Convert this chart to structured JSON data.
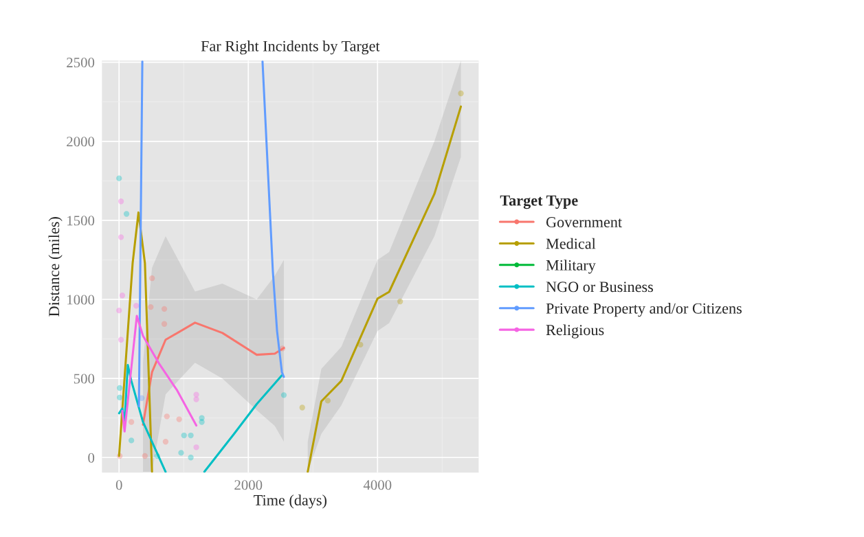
{
  "chart_data": {
    "type": "line",
    "title": "Far Right Incidents by Target",
    "xlabel": "Time (days)",
    "ylabel": "Distance (miles)",
    "legend_title": "Target Type",
    "legend": "right",
    "grid": true,
    "xlim": [
      -265,
      5565
    ],
    "xticks": [
      0,
      2000,
      4000
    ],
    "ylim": [
      -95,
      2510
    ],
    "yticks": [
      0,
      500,
      1000,
      1500,
      2000,
      2500
    ],
    "series": [
      {
        "type": "scatter",
        "marker": "circle",
        "color": "#f8766d",
        "x": [
          510,
          490,
          700,
          700,
          740,
          930,
          720,
          400,
          10,
          190,
          2530
        ],
        "values": [
          1134,
          952,
          940,
          845,
          260,
          242,
          100,
          10,
          10,
          225,
          690
        ]
      },
      {
        "type": "scatter",
        "marker": "circle",
        "color": "#b79f00",
        "x": [
          2835,
          3230,
          3735,
          4350,
          5290
        ],
        "values": [
          316,
          360,
          714,
          987,
          2303
        ]
      },
      {
        "type": "scatter",
        "marker": "circle",
        "color": "#00bfc4",
        "x": [
          0,
          30,
          115,
          10,
          10,
          1005,
          1110,
          960,
          1110,
          1280,
          1280,
          2550,
          190,
          590
        ],
        "values": [
          1766,
          null,
          1541,
          440,
          380,
          140,
          140,
          30,
          0,
          250,
          225,
          395,
          108,
          10
        ]
      },
      {
        "type": "scatter",
        "marker": "circle",
        "color": "#619cff",
        "x": [
          350
        ],
        "values": [
          376
        ]
      },
      {
        "type": "scatter",
        "marker": "circle",
        "color": "#f564e3",
        "x": [
          30,
          30,
          0,
          50,
          30,
          1195,
          1195,
          1195,
          265
        ],
        "values": [
          1620,
          1394,
          930,
          1025,
          745,
          398,
          368,
          65,
          960
        ]
      },
      {
        "name": "Government",
        "color": "#f8766d",
        "x": [
          370,
          510,
          720,
          1175,
          1600,
          2130,
          2410,
          2550
        ],
        "values": [
          208,
          540,
          745,
          853,
          788,
          650,
          657,
          693
        ],
        "lower": [
          -90,
          -90,
          400,
          600,
          500,
          300,
          200,
          100
        ],
        "upper": [
          600,
          1200,
          1400,
          1050,
          1100,
          1000,
          1150,
          1250
        ]
      },
      {
        "name": "Medical",
        "color": "#b79f00",
        "x": [
          0,
          210,
          300,
          400,
          510,
          1700,
          2920,
          3130,
          3440,
          4000,
          4180,
          4880,
          5290
        ],
        "values": [
          10,
          1230,
          1550,
          1230,
          -90,
          null,
          -90,
          355,
          485,
          1005,
          1048,
          1667,
          2220
        ],
        "lower": [
          null,
          null,
          null,
          null,
          null,
          null,
          -90,
          150,
          330,
          800,
          850,
          1400,
          1900
        ],
        "upper": [
          null,
          null,
          null,
          null,
          null,
          null,
          100,
          560,
          700,
          1250,
          1300,
          2000,
          2510
        ]
      },
      {
        "name": "Military",
        "color": "#00ba38"
      },
      {
        "name": "NGO or Business",
        "color": "#00bfc4",
        "x": [
          0,
          50,
          85,
          135,
          190,
          370,
          720,
          1000,
          1320,
          1780,
          2130,
          2520
        ],
        "values": [
          280,
          310,
          225,
          585,
          485,
          225,
          -90,
          null,
          -90,
          150,
          338,
          520
        ]
      },
      {
        "name": "Private Property and/or Citizens",
        "color": "#619cff",
        "x": [
          307,
          360,
          1300,
          2220,
          2380,
          2445,
          2520,
          2550
        ],
        "values": [
          325,
          2505,
          null,
          2505,
          1177,
          800,
          540,
          510
        ]
      },
      {
        "name": "Religious",
        "color": "#f564e3",
        "x": [
          50,
          85,
          275,
          370,
          615,
          900,
          1195
        ],
        "values": [
          295,
          165,
          896,
          770,
          597,
          424,
          203
        ]
      }
    ]
  }
}
